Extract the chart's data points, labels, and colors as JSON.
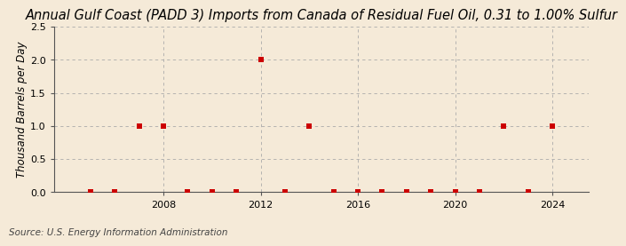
{
  "title": "Annual Gulf Coast (PADD 3) Imports from Canada of Residual Fuel Oil, 0.31 to 1.00% Sulfur",
  "ylabel": "Thousand Barrels per Day",
  "source": "Source: U.S. Energy Information Administration",
  "background_color": "#f5ead8",
  "plot_background_color": "#f5ead8",
  "years": [
    2005,
    2006,
    2007,
    2008,
    2009,
    2010,
    2011,
    2012,
    2013,
    2014,
    2015,
    2016,
    2017,
    2018,
    2019,
    2020,
    2021,
    2022,
    2023,
    2024
  ],
  "values": [
    0,
    0,
    1,
    1,
    0,
    0,
    0,
    2,
    0,
    1,
    0,
    0,
    0,
    0,
    0,
    0,
    0,
    1,
    0,
    1
  ],
  "marker_color": "#cc0000",
  "marker_size": 25,
  "ylim": [
    0,
    2.5
  ],
  "yticks": [
    0.0,
    0.5,
    1.0,
    1.5,
    2.0,
    2.5
  ],
  "xticks": [
    2008,
    2012,
    2016,
    2020,
    2024
  ],
  "xlim": [
    2003.5,
    2025.5
  ],
  "title_fontsize": 10.5,
  "ylabel_fontsize": 8.5,
  "source_fontsize": 7.5,
  "tick_fontsize": 8
}
